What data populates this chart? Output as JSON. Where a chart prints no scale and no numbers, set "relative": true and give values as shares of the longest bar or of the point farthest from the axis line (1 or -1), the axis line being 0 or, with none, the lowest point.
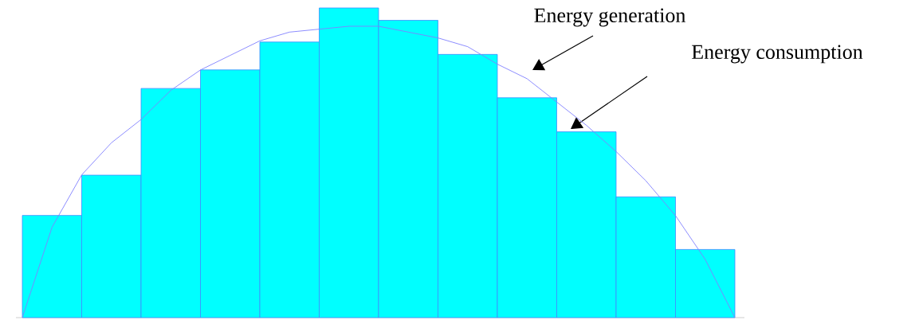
{
  "chart_data": [
    {
      "type": "bar",
      "relative": true,
      "color": "#00ffff",
      "categories": [
        null,
        null,
        null,
        null,
        null,
        null,
        null,
        null,
        null,
        null,
        null,
        null
      ],
      "values": [
        0.33,
        0.46,
        0.74,
        0.8,
        0.89,
        1.0,
        0.96,
        0.85,
        0.71,
        0.6,
        0.39,
        0.22
      ],
      "annotations": [
        "Energy consumption"
      ]
    },
    {
      "type": "line",
      "relative": true,
      "color": "#8080ff",
      "categories": [
        null,
        null,
        null,
        null,
        null,
        null,
        null,
        null,
        null,
        null,
        null,
        null,
        null,
        null,
        null,
        null,
        null,
        null,
        null,
        null,
        null,
        null,
        null,
        null,
        null
      ],
      "values": [
        0,
        0.31,
        0.49,
        0.6,
        0.68,
        0.78,
        0.85,
        0.9,
        0.95,
        0.98,
        0.99,
        1,
        1,
        0.98,
        0.96,
        0.93,
        0.87,
        0.82,
        0.74,
        0.66,
        0.57,
        0.47,
        0.35,
        0.2,
        0
      ],
      "annotations": [
        "Energy generation"
      ]
    }
  ]
}
